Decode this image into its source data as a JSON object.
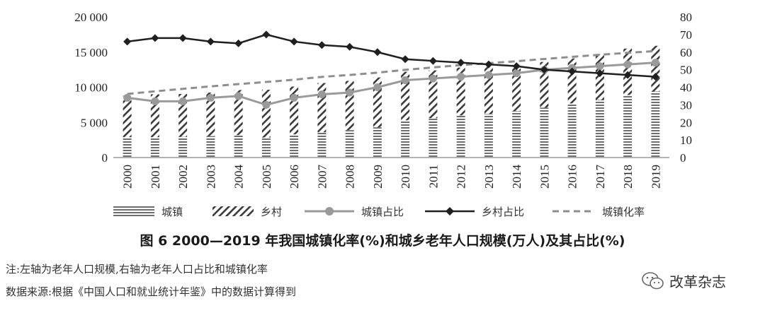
{
  "chart_data": {
    "type": "bar",
    "categories": [
      "2000",
      "2001",
      "2002",
      "2003",
      "2004",
      "2005",
      "2006",
      "2007",
      "2008",
      "2009",
      "2010",
      "2011",
      "2012",
      "2013",
      "2014",
      "2015",
      "2016",
      "2017",
      "2018",
      "2019"
    ],
    "stacked": true,
    "left_axis": {
      "ticks": [
        "0",
        "5 000",
        "10 000",
        "15 000",
        "20 000"
      ],
      "range": [
        0,
        20000
      ]
    },
    "right_axis": {
      "ticks": [
        "0",
        "10",
        "20",
        "30",
        "40",
        "50",
        "60",
        "70",
        "80"
      ],
      "range": [
        0,
        80
      ]
    },
    "series": [
      {
        "name": "城镇",
        "kind": "bar",
        "axis": "left",
        "values": [
          2900,
          2900,
          2950,
          3050,
          3200,
          2850,
          3300,
          3600,
          3900,
          4300,
          5300,
          5600,
          6000,
          6200,
          6600,
          7100,
          7700,
          8200,
          8900,
          9400
        ]
      },
      {
        "name": "乡村",
        "kind": "bar",
        "axis": "left",
        "values": [
          5900,
          6100,
          6100,
          6200,
          6400,
          6800,
          6800,
          7000,
          7000,
          7100,
          6900,
          6800,
          6800,
          6900,
          6600,
          6500,
          6400,
          6500,
          6600,
          6500
        ]
      },
      {
        "name": "城镇占比",
        "kind": "line",
        "marker": "circle",
        "axis": "right",
        "values": [
          34,
          32,
          32,
          34,
          35,
          30,
          34,
          36,
          37,
          40,
          44,
          45,
          46,
          47,
          48,
          50,
          51,
          52,
          53,
          54
        ]
      },
      {
        "name": "乡村占比",
        "kind": "line",
        "marker": "diamond",
        "axis": "right",
        "values": [
          66,
          68,
          68,
          66,
          65,
          70,
          66,
          64,
          63,
          60,
          56,
          55,
          54,
          53,
          52,
          50,
          49,
          48,
          47,
          46
        ]
      },
      {
        "name": "城镇化率",
        "kind": "line",
        "style": "dashed",
        "axis": "right",
        "values": [
          36.2,
          37.7,
          39.1,
          40.5,
          41.8,
          43.0,
          44.3,
          45.9,
          47.0,
          48.3,
          49.9,
          51.3,
          52.6,
          53.7,
          54.8,
          56.1,
          57.3,
          58.5,
          59.6,
          60.6
        ]
      }
    ],
    "grid": false,
    "legend_position": "bottom"
  },
  "caption": "图 6  2000—2019 年我国城镇化率(%)和城乡老年人口规模(万人)及其占比(%)",
  "note": "注:左轴为老年人口规模,右轴为老年人口占比和城镇化率",
  "source": "数据来源:根据《中国人口和就业统计年鉴》中的数据计算得到",
  "watermark": "改革杂志",
  "colors": {
    "bars": "#6e6e6e",
    "line": "#9a9a9a",
    "rural_line": "#1f1f1f",
    "dash": "#8e8e8e"
  }
}
